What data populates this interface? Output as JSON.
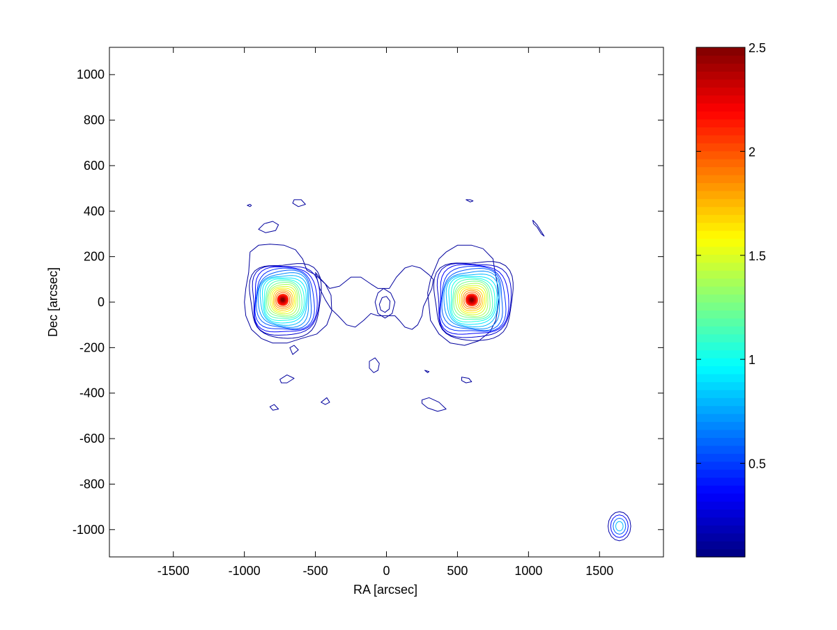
{
  "chart_data": {
    "type": "contour",
    "title": "",
    "xlabel": "RA [arcsec]",
    "ylabel": "Dec [arcsec]",
    "xlim": [
      -1950,
      1950
    ],
    "ylim": [
      -1120,
      1120
    ],
    "xticks": [
      -1500,
      -1000,
      -500,
      0,
      500,
      1000,
      1500
    ],
    "yticks": [
      1000,
      800,
      600,
      400,
      200,
      0,
      -200,
      -400,
      -600,
      -800,
      -1000
    ],
    "xtick_labels": [
      "-1500",
      "-1000",
      "-500",
      "0",
      "500",
      "1000",
      "1500"
    ],
    "ytick_labels": [
      "1000",
      "800",
      "600",
      "400",
      "200",
      "0",
      "-200",
      "-400",
      "-600",
      "-800",
      "-1000"
    ],
    "grid": false,
    "colormap": "jet",
    "colorbar": {
      "min": 0.05,
      "max": 2.5,
      "ticks": [
        0.5,
        1,
        1.5,
        2,
        2.5
      ],
      "tick_labels": [
        "0.5",
        "1",
        "1.5",
        "2",
        "2.5"
      ]
    },
    "sources": [
      {
        "name": "west-lobe",
        "x": -730,
        "y": 10,
        "peak": 2.5
      },
      {
        "name": "east-lobe",
        "x": 600,
        "y": 10,
        "peak": 2.5
      },
      {
        "name": "core",
        "x": -20,
        "y": -20,
        "peak": 0.3
      },
      {
        "name": "south-east-source",
        "x": 1640,
        "y": -985,
        "peak": 0.9
      }
    ],
    "outer_contours": [
      {
        "name": "west-lobe-envelope",
        "points": [
          [
            -960,
            220
          ],
          [
            -900,
            250
          ],
          [
            -820,
            255
          ],
          [
            -720,
            250
          ],
          [
            -640,
            230
          ],
          [
            -590,
            190
          ],
          [
            -560,
            140
          ],
          [
            -500,
            120
          ],
          [
            -430,
            80
          ],
          [
            -390,
            30
          ],
          [
            -385,
            -40
          ],
          [
            -420,
            -100
          ],
          [
            -490,
            -140
          ],
          [
            -600,
            -160
          ],
          [
            -700,
            -180
          ],
          [
            -800,
            -180
          ],
          [
            -880,
            -160
          ],
          [
            -950,
            -120
          ],
          [
            -990,
            -60
          ],
          [
            -1000,
            0
          ],
          [
            -990,
            60
          ],
          [
            -970,
            130
          ]
        ]
      },
      {
        "name": "east-lobe-envelope",
        "points": [
          [
            330,
            130
          ],
          [
            370,
            190
          ],
          [
            420,
            220
          ],
          [
            500,
            250
          ],
          [
            600,
            250
          ],
          [
            680,
            235
          ],
          [
            750,
            190
          ],
          [
            760,
            150
          ],
          [
            780,
            80
          ],
          [
            790,
            0
          ],
          [
            770,
            -80
          ],
          [
            730,
            -130
          ],
          [
            650,
            -170
          ],
          [
            550,
            -190
          ],
          [
            450,
            -180
          ],
          [
            370,
            -140
          ],
          [
            310,
            -80
          ],
          [
            300,
            -20
          ],
          [
            290,
            40
          ],
          [
            310,
            100
          ]
        ]
      },
      {
        "name": "bridge-north",
        "points": [
          [
            -500,
            130
          ],
          [
            -460,
            100
          ],
          [
            -400,
            60
          ],
          [
            -330,
            70
          ],
          [
            -250,
            110
          ],
          [
            -180,
            110
          ],
          [
            -110,
            80
          ],
          [
            -60,
            60
          ],
          [
            20,
            60
          ],
          [
            70,
            110
          ],
          [
            130,
            150
          ],
          [
            180,
            160
          ],
          [
            240,
            150
          ],
          [
            300,
            120
          ],
          [
            330,
            100
          ],
          [
            320,
            60
          ],
          [
            290,
            20
          ],
          [
            260,
            -20
          ],
          [
            250,
            -60
          ],
          [
            220,
            -100
          ],
          [
            180,
            -120
          ],
          [
            130,
            -110
          ],
          [
            90,
            -80
          ],
          [
            60,
            -60
          ],
          [
            0,
            -60
          ],
          [
            -60,
            -60
          ],
          [
            -110,
            -50
          ],
          [
            -160,
            -80
          ],
          [
            -220,
            -110
          ],
          [
            -280,
            -100
          ],
          [
            -340,
            -60
          ],
          [
            -390,
            -30
          ],
          [
            -430,
            10
          ],
          [
            -470,
            60
          ]
        ]
      },
      {
        "name": "core-ring-1",
        "points": [
          [
            -80,
            0
          ],
          [
            -60,
            40
          ],
          [
            -20,
            60
          ],
          [
            30,
            40
          ],
          [
            60,
            0
          ],
          [
            40,
            -50
          ],
          [
            -10,
            -70
          ],
          [
            -60,
            -50
          ]
        ]
      },
      {
        "name": "core-ring-2",
        "points": [
          [
            -50,
            -10
          ],
          [
            -30,
            20
          ],
          [
            0,
            25
          ],
          [
            25,
            5
          ],
          [
            20,
            -30
          ],
          [
            -10,
            -45
          ],
          [
            -40,
            -35
          ]
        ]
      },
      {
        "name": "island-1",
        "points": [
          [
            -980,
            425
          ],
          [
            -960,
            430
          ],
          [
            -950,
            425
          ],
          [
            -960,
            420
          ]
        ]
      },
      {
        "name": "island-2",
        "points": [
          [
            -650,
            450
          ],
          [
            -600,
            450
          ],
          [
            -570,
            430
          ],
          [
            -620,
            420
          ],
          [
            -660,
            435
          ]
        ]
      },
      {
        "name": "island-3",
        "points": [
          [
            -900,
            320
          ],
          [
            -860,
            345
          ],
          [
            -800,
            355
          ],
          [
            -760,
            340
          ],
          [
            -780,
            315
          ],
          [
            -850,
            305
          ]
        ]
      },
      {
        "name": "island-4",
        "points": [
          [
            560,
            450
          ],
          [
            590,
            450
          ],
          [
            610,
            445
          ],
          [
            590,
            440
          ]
        ]
      },
      {
        "name": "island-5",
        "points": [
          [
            1030,
            360
          ],
          [
            1060,
            340
          ],
          [
            1090,
            310
          ],
          [
            1110,
            290
          ],
          [
            1090,
            300
          ],
          [
            1060,
            330
          ],
          [
            1035,
            345
          ]
        ]
      },
      {
        "name": "island-6",
        "points": [
          [
            -680,
            -200
          ],
          [
            -650,
            -190
          ],
          [
            -620,
            -210
          ],
          [
            -660,
            -230
          ]
        ]
      },
      {
        "name": "island-7",
        "points": [
          [
            -750,
            -340
          ],
          [
            -700,
            -320
          ],
          [
            -650,
            -335
          ],
          [
            -700,
            -355
          ],
          [
            -740,
            -355
          ]
        ]
      },
      {
        "name": "island-8",
        "points": [
          [
            -820,
            -460
          ],
          [
            -790,
            -450
          ],
          [
            -760,
            -470
          ],
          [
            -800,
            -475
          ]
        ]
      },
      {
        "name": "island-9",
        "points": [
          [
            -460,
            -440
          ],
          [
            -420,
            -420
          ],
          [
            -400,
            -440
          ],
          [
            -430,
            -450
          ]
        ]
      },
      {
        "name": "island-10",
        "points": [
          [
            -120,
            -260
          ],
          [
            -80,
            -245
          ],
          [
            -50,
            -270
          ],
          [
            -60,
            -300
          ],
          [
            -90,
            -310
          ],
          [
            -120,
            -290
          ]
        ]
      },
      {
        "name": "island-11",
        "points": [
          [
            270,
            -300
          ],
          [
            300,
            -305
          ],
          [
            290,
            -310
          ]
        ]
      },
      {
        "name": "island-12",
        "points": [
          [
            530,
            -330
          ],
          [
            580,
            -335
          ],
          [
            600,
            -350
          ],
          [
            560,
            -355
          ],
          [
            530,
            -345
          ]
        ]
      },
      {
        "name": "island-13",
        "points": [
          [
            250,
            -430
          ],
          [
            300,
            -420
          ],
          [
            370,
            -440
          ],
          [
            420,
            -470
          ],
          [
            360,
            -480
          ],
          [
            290,
            -465
          ],
          [
            250,
            -445
          ]
        ]
      }
    ]
  }
}
